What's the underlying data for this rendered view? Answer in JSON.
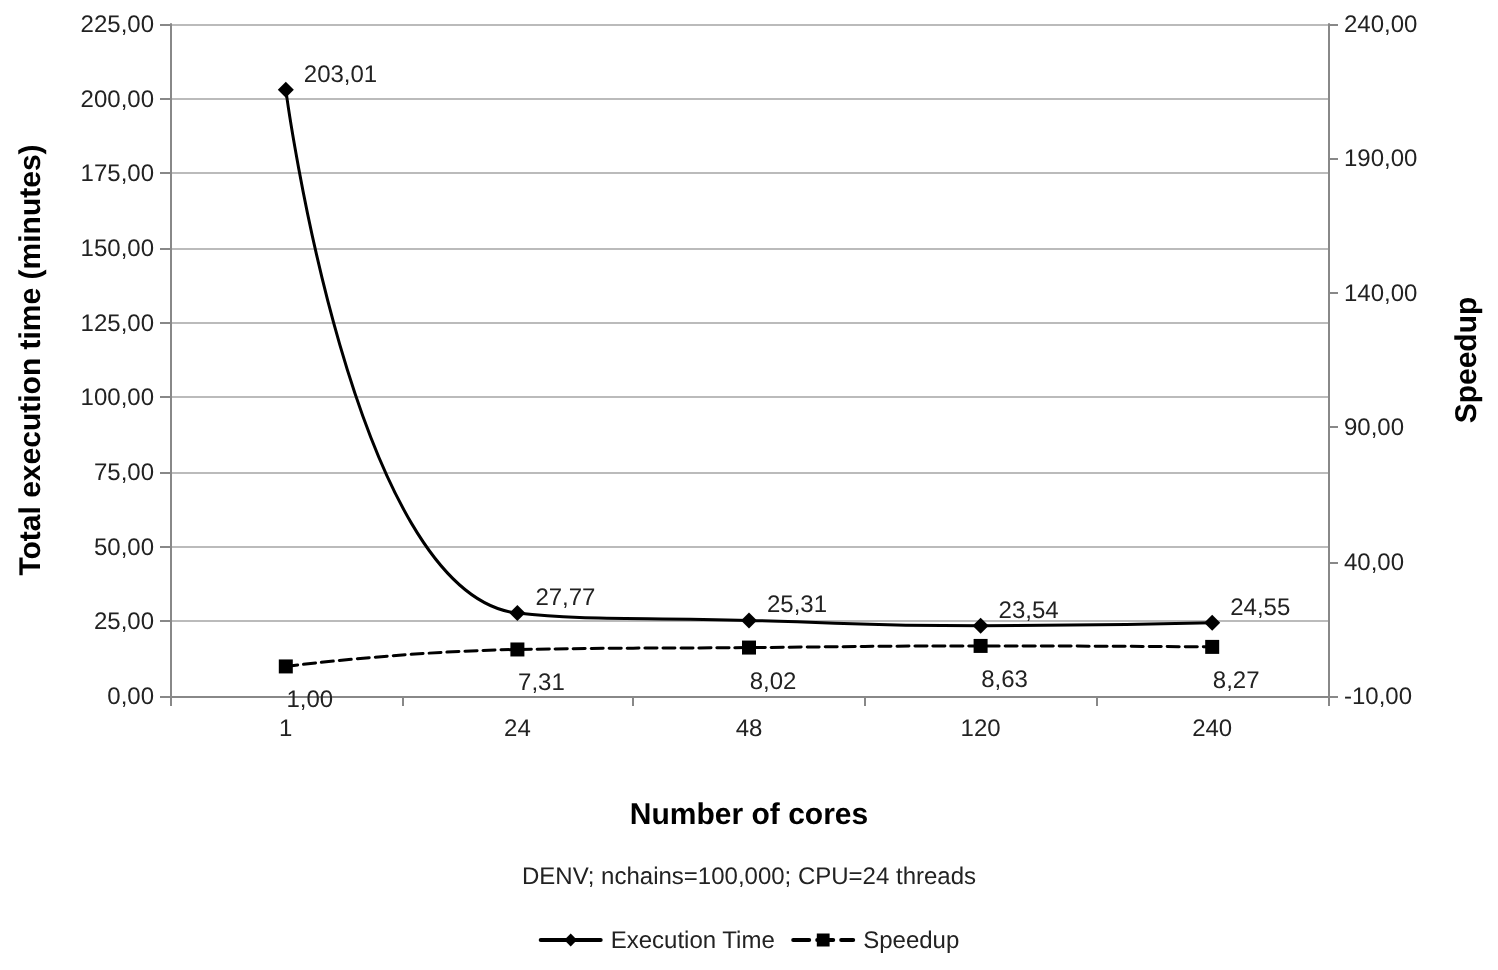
{
  "chart_data": {
    "type": "line",
    "categories": [
      "1",
      "24",
      "48",
      "120",
      "240"
    ],
    "xlabel": "Number of cores",
    "ylabel": "Total execution time (minutes)",
    "y2label": "Speedup",
    "annotations": [
      "DENV; nchains=100,000; CPU=24 threads"
    ],
    "series": [
      {
        "name": "Execution Time",
        "color": "#000000",
        "values": [
          203.01,
          27.77,
          25.31,
          23.54,
          24.55
        ],
        "value_labels": [
          "203,01",
          "27,77",
          "25,31",
          "23,54",
          "24,55"
        ],
        "marker": "diamond",
        "line_style": "solid"
      },
      {
        "name": "Speedup",
        "color": "#000000",
        "axis": "y2",
        "values": [
          1.0,
          7.31,
          8.02,
          8.63,
          8.27
        ],
        "value_labels": [
          "1,00",
          "7,31",
          "8,02",
          "8,63",
          "8,27"
        ],
        "marker": "square",
        "line_style": "dashed"
      }
    ],
    "ylim": [
      0,
      225
    ],
    "yticks": [
      {
        "value": 0,
        "label": "0,00"
      },
      {
        "value": 25,
        "label": "25,00"
      },
      {
        "value": 50,
        "label": "50,00"
      },
      {
        "value": 75,
        "label": "75,00"
      },
      {
        "value": 100,
        "label": "100,00"
      },
      {
        "value": 125,
        "label": "125,00"
      },
      {
        "value": 150,
        "label": "150,00"
      },
      {
        "value": 175,
        "label": "175,00"
      },
      {
        "value": 200,
        "label": "200,00"
      },
      {
        "value": 225,
        "label": "225,00"
      }
    ],
    "y2lim": [
      -10,
      240
    ],
    "y2ticks": [
      {
        "value": -10,
        "label": "-10,00"
      },
      {
        "value": 40,
        "label": "40,00"
      },
      {
        "value": 90,
        "label": "90,00"
      },
      {
        "value": 140,
        "label": "140,00"
      },
      {
        "value": 190,
        "label": "190,00"
      },
      {
        "value": 240,
        "label": "240,00"
      }
    ],
    "grid": "y",
    "legend": "bottom"
  }
}
